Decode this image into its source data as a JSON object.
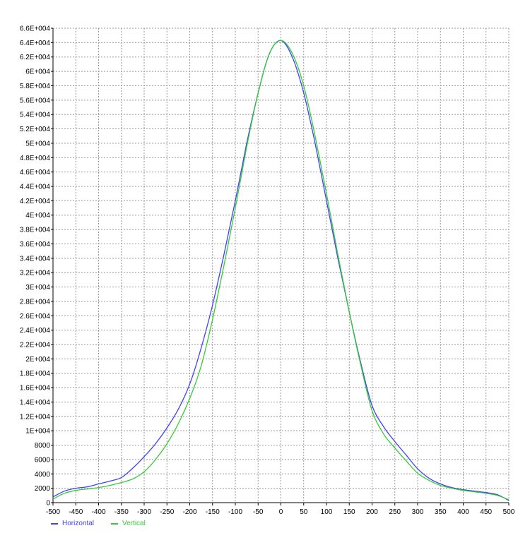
{
  "chart_data": {
    "type": "line",
    "title": "",
    "xlabel": "",
    "ylabel": "",
    "xlim": [
      -500,
      500
    ],
    "ylim": [
      0,
      66000
    ],
    "grid": true,
    "legend_position": "bottom-left",
    "x_ticks": [
      -500,
      -450,
      -400,
      -350,
      -300,
      -250,
      -200,
      -150,
      -100,
      -50,
      0,
      50,
      100,
      150,
      200,
      250,
      300,
      350,
      400,
      450,
      500
    ],
    "x_tick_labels": [
      "-500",
      "-450",
      "-400",
      "-350",
      "-300",
      "-250",
      "-200",
      "-150",
      "-100",
      "-50",
      "0",
      "50",
      "100",
      "150",
      "200",
      "250",
      "300",
      "350",
      "400",
      "450",
      "500"
    ],
    "y_ticks": [
      0,
      2000,
      4000,
      6000,
      8000,
      10000,
      12000,
      14000,
      16000,
      18000,
      20000,
      22000,
      24000,
      26000,
      28000,
      30000,
      32000,
      34000,
      36000,
      38000,
      40000,
      42000,
      44000,
      46000,
      48000,
      50000,
      52000,
      54000,
      56000,
      58000,
      60000,
      62000,
      64000,
      66000
    ],
    "y_tick_labels": [
      "0",
      "2000",
      "4000",
      "6000",
      "8000",
      "1E+004",
      "1.2E+004",
      "1.4E+004",
      "1.6E+004",
      "1.8E+004",
      "2E+004",
      "2.2E+004",
      "2.4E+004",
      "2.6E+004",
      "2.8E+004",
      "3E+004",
      "3.2E+004",
      "3.4E+004",
      "3.6E+004",
      "3.8E+004",
      "4E+004",
      "4.2E+004",
      "4.4E+004",
      "4.6E+004",
      "4.8E+004",
      "5E+004",
      "5.2E+004",
      "5.4E+004",
      "5.6E+004",
      "5.8E+004",
      "6E+004",
      "6.2E+004",
      "6.4E+004",
      "6.6E+004"
    ],
    "x": [
      -500,
      -475,
      -450,
      -425,
      -400,
      -375,
      -350,
      -325,
      -300,
      -275,
      -250,
      -225,
      -200,
      -175,
      -150,
      -125,
      -100,
      -75,
      -50,
      -25,
      0,
      25,
      50,
      75,
      100,
      125,
      150,
      175,
      200,
      225,
      250,
      275,
      300,
      325,
      350,
      375,
      400,
      425,
      450,
      475,
      500
    ],
    "series": [
      {
        "name": "Horizontal",
        "color": "#4040ff",
        "values": [
          800,
          1600,
          2000,
          2200,
          2600,
          3000,
          3500,
          4800,
          6400,
          8200,
          10400,
          13000,
          16500,
          21500,
          27500,
          34500,
          42000,
          50000,
          57000,
          62500,
          64300,
          62000,
          57000,
          50000,
          42000,
          34000,
          26500,
          19500,
          13500,
          10600,
          8500,
          6600,
          4700,
          3400,
          2600,
          2100,
          1800,
          1600,
          1400,
          1100,
          300
        ]
      },
      {
        "name": "Vertical",
        "color": "#33cc33",
        "values": [
          500,
          1300,
          1700,
          1900,
          2100,
          2400,
          2800,
          3300,
          4300,
          6000,
          8200,
          11000,
          14500,
          19000,
          25500,
          33000,
          41000,
          49500,
          57000,
          62500,
          64300,
          62500,
          58000,
          51000,
          43000,
          34500,
          26500,
          19200,
          12800,
          9600,
          7600,
          5800,
          4100,
          3100,
          2400,
          2000,
          1700,
          1500,
          1300,
          1000,
          400
        ]
      }
    ]
  }
}
